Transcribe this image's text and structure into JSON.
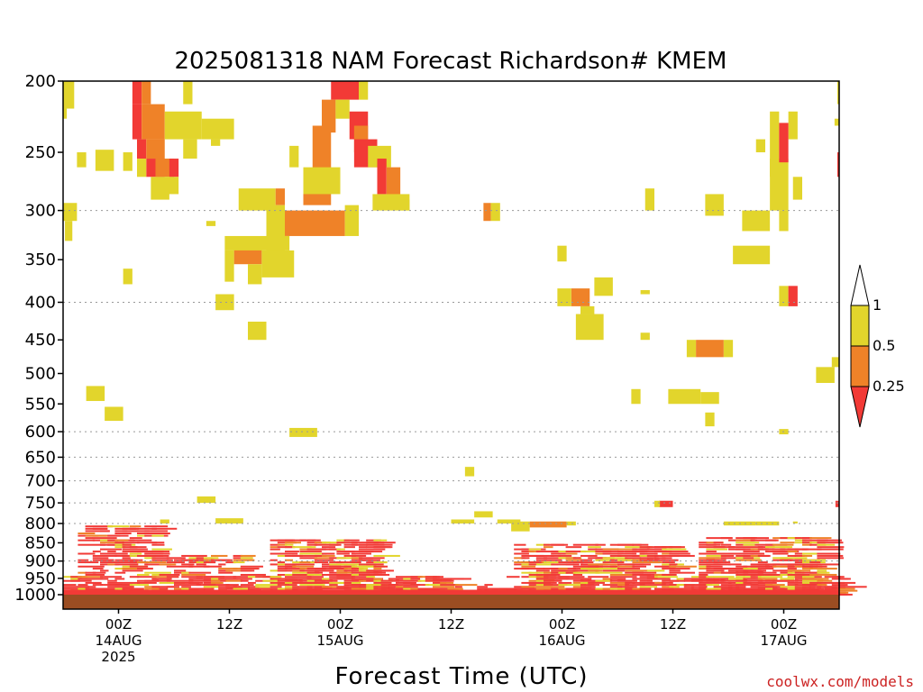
{
  "chart_data": {
    "type": "heatmap",
    "title": "2025081318 NAM Forecast Richardson# KMEM",
    "xlabel": "Forecast Time (UTC)",
    "ylabel": "",
    "y_axis": {
      "scale": "log-pressure",
      "reversed": true,
      "range_hpa": [
        1000,
        200
      ],
      "ticks": [
        200,
        250,
        300,
        350,
        400,
        450,
        500,
        550,
        600,
        650,
        700,
        750,
        800,
        850,
        900,
        950,
        1000
      ],
      "gridlines_at": [
        300,
        400,
        600,
        650,
        700,
        750,
        800,
        900
      ]
    },
    "x_axis": {
      "range_hours_from_init": [
        0,
        84
      ],
      "ticks": [
        {
          "hour": 6,
          "lines": [
            "00Z",
            "14AUG",
            "2025"
          ]
        },
        {
          "hour": 18,
          "lines": [
            "12Z"
          ]
        },
        {
          "hour": 30,
          "lines": [
            "00Z",
            "15AUG"
          ]
        },
        {
          "hour": 42,
          "lines": [
            "12Z"
          ]
        },
        {
          "hour": 54,
          "lines": [
            "00Z",
            "16AUG"
          ]
        },
        {
          "hour": 66,
          "lines": [
            "12Z"
          ]
        },
        {
          "hour": 78,
          "lines": [
            "00Z",
            "17AUG"
          ]
        }
      ]
    },
    "colorbar": {
      "levels": [
        "1",
        "0.5",
        "0.25"
      ],
      "bins": [
        {
          "range": "0.5 – 1",
          "color": "#e2d52c"
        },
        {
          "range": "0.25 – 0.5",
          "color": "#ef8228"
        },
        {
          "range": "< 0.25",
          "color": "#f23a36"
        }
      ]
    },
    "ground_color": "#9b4d22",
    "category_colors": {
      "y": "#e2d52c",
      "o": "#ef8228",
      "r": "#f23a36"
    },
    "cells": [
      [
        "y",
        0,
        1.2,
        200,
        218
      ],
      [
        "y",
        0,
        0.4,
        218,
        225
      ],
      [
        "r",
        7.5,
        8.5,
        200,
        215
      ],
      [
        "o",
        8.5,
        9.5,
        200,
        215
      ],
      [
        "y",
        13,
        14,
        200,
        215
      ],
      [
        "r",
        7.5,
        8.5,
        215,
        240
      ],
      [
        "o",
        8.5,
        11,
        215,
        240
      ],
      [
        "y",
        11,
        15,
        220,
        240
      ],
      [
        "y",
        15,
        18.5,
        225,
        240
      ],
      [
        "r",
        8,
        9,
        240,
        255
      ],
      [
        "o",
        9,
        11,
        240,
        255
      ],
      [
        "y",
        13,
        14.5,
        240,
        255
      ],
      [
        "y",
        16,
        17,
        240,
        245
      ],
      [
        "r",
        9,
        11,
        255,
        270
      ],
      [
        "o",
        10,
        12,
        255,
        270
      ],
      [
        "r",
        11.5,
        12.5,
        255,
        270
      ],
      [
        "y",
        8,
        9,
        255,
        270
      ],
      [
        "y",
        11,
        12.5,
        270,
        285
      ],
      [
        "y",
        1.5,
        2.5,
        250,
        262
      ],
      [
        "y",
        3.5,
        5.5,
        248,
        265
      ],
      [
        "y",
        6.5,
        7.5,
        250,
        265
      ],
      [
        "y",
        9.5,
        11.5,
        270,
        290
      ],
      [
        "r",
        29,
        32,
        200,
        212
      ],
      [
        "y",
        32,
        33,
        200,
        212
      ],
      [
        "o",
        28,
        29.5,
        212,
        235
      ],
      [
        "y",
        29.5,
        31,
        212,
        225
      ],
      [
        "r",
        31,
        33,
        220,
        240
      ],
      [
        "o",
        31.5,
        33,
        230,
        250
      ],
      [
        "o",
        27,
        29,
        230,
        265
      ],
      [
        "r",
        31.5,
        34,
        240,
        262
      ],
      [
        "y",
        33,
        35.5,
        245,
        262
      ],
      [
        "r",
        34,
        35,
        255,
        285
      ],
      [
        "o",
        35,
        36.5,
        262,
        290
      ],
      [
        "y",
        33.5,
        37.5,
        285,
        300
      ],
      [
        "y",
        24.5,
        25.5,
        245,
        262
      ],
      [
        "o",
        26,
        29,
        270,
        295
      ],
      [
        "y",
        26,
        30,
        262,
        285
      ],
      [
        "y",
        19,
        23,
        280,
        300
      ],
      [
        "o",
        23,
        24,
        280,
        295
      ],
      [
        "o",
        24,
        30.5,
        300,
        325
      ],
      [
        "y",
        30.5,
        32,
        295,
        325
      ],
      [
        "y",
        22,
        24,
        295,
        350
      ],
      [
        "o",
        18.5,
        21.5,
        335,
        355
      ],
      [
        "y",
        17.5,
        24.5,
        325,
        340
      ],
      [
        "y",
        17.5,
        18.5,
        340,
        375
      ],
      [
        "y",
        20,
        21.5,
        355,
        378
      ],
      [
        "y",
        21.5,
        25,
        340,
        370
      ],
      [
        "y",
        16.5,
        18.5,
        390,
        410
      ],
      [
        "y",
        20,
        22,
        425,
        450
      ],
      [
        "y",
        15.5,
        16.5,
        310,
        315
      ],
      [
        "y",
        36.5,
        37.5,
        290,
        300
      ],
      [
        "y",
        6.5,
        7.5,
        360,
        378
      ],
      [
        "y",
        0,
        1.5,
        293,
        310
      ],
      [
        "y",
        0.2,
        1,
        310,
        330
      ],
      [
        "o",
        45.5,
        46.3,
        293,
        310
      ],
      [
        "y",
        46.3,
        47.3,
        293,
        310
      ],
      [
        "y",
        53.5,
        54.5,
        335,
        352
      ],
      [
        "y",
        57.5,
        59.5,
        370,
        392
      ],
      [
        "y",
        62.5,
        63.5,
        385,
        390
      ],
      [
        "o",
        55,
        57,
        383,
        405
      ],
      [
        "y",
        53.5,
        55,
        383,
        405
      ],
      [
        "y",
        56,
        57.5,
        405,
        415
      ],
      [
        "y",
        55.5,
        58.5,
        415,
        450
      ],
      [
        "y",
        62.5,
        63.5,
        440,
        450
      ],
      [
        "y",
        69.5,
        71.5,
        285,
        305
      ],
      [
        "y",
        73.5,
        76.5,
        300,
        320
      ],
      [
        "y",
        63,
        64,
        280,
        300
      ],
      [
        "y",
        72.5,
        76.5,
        335,
        355
      ],
      [
        "y",
        76.5,
        77.5,
        220,
        270
      ],
      [
        "y",
        78.5,
        79.5,
        220,
        240
      ],
      [
        "y",
        75,
        76,
        240,
        250
      ],
      [
        "y",
        76.5,
        78.5,
        255,
        300
      ],
      [
        "r",
        77.5,
        78.5,
        228,
        258
      ],
      [
        "y",
        79,
        80,
        270,
        290
      ],
      [
        "y",
        77.5,
        78.5,
        300,
        320
      ],
      [
        "y",
        77.5,
        78.5,
        380,
        405
      ],
      [
        "r",
        78.5,
        79.5,
        380,
        405
      ],
      [
        "y",
        83.8,
        84,
        200,
        215
      ],
      [
        "y",
        83.5,
        84,
        225,
        230
      ],
      [
        "r",
        83.8,
        84,
        250,
        270
      ],
      [
        "y",
        67.5,
        68.5,
        450,
        475
      ],
      [
        "o",
        68.5,
        71.5,
        450,
        475
      ],
      [
        "y",
        71.5,
        72.5,
        450,
        475
      ],
      [
        "y",
        81.5,
        83.5,
        490,
        515
      ],
      [
        "y",
        83.2,
        84,
        475,
        490
      ],
      [
        "y",
        2.5,
        4.5,
        520,
        545
      ],
      [
        "y",
        4.5,
        6.5,
        555,
        580
      ],
      [
        "y",
        61.5,
        62.5,
        525,
        550
      ],
      [
        "y",
        65.5,
        69,
        525,
        550
      ],
      [
        "y",
        69,
        71,
        530,
        550
      ],
      [
        "y",
        69.5,
        70.5,
        565,
        590
      ],
      [
        "y",
        77.5,
        78.5,
        595,
        605
      ],
      [
        "y",
        24.5,
        27.5,
        593,
        610
      ],
      [
        "y",
        43.5,
        44.5,
        670,
        690
      ],
      [
        "y",
        14.5,
        16.5,
        735,
        750
      ],
      [
        "r",
        64.5,
        66,
        745,
        760
      ],
      [
        "y",
        64,
        64.6,
        745,
        760
      ],
      [
        "r",
        83.6,
        84,
        745,
        760
      ],
      [
        "y",
        10.5,
        11.5,
        790,
        800
      ],
      [
        "y",
        16.5,
        19.5,
        787,
        800
      ],
      [
        "y",
        42,
        44.5,
        790,
        800
      ],
      [
        "y",
        44.5,
        46.5,
        770,
        785
      ],
      [
        "y",
        47,
        49.5,
        790,
        800
      ],
      [
        "o",
        50.5,
        54.5,
        795,
        810
      ],
      [
        "y",
        48.5,
        50.5,
        795,
        820
      ],
      [
        "y",
        54.5,
        55.5,
        795,
        805
      ],
      [
        "y",
        71.5,
        75,
        795,
        805
      ],
      [
        "y",
        75,
        77.5,
        795,
        805
      ],
      [
        "y",
        79,
        79.5,
        795,
        800
      ]
    ],
    "low_level_band": {
      "pressure_range_hpa": [
        800,
        1000
      ],
      "description": "dense fragmented red/orange/yellow streaks below ~800 hPa throughout the forecast"
    }
  },
  "credit": "coolwx.com/models"
}
